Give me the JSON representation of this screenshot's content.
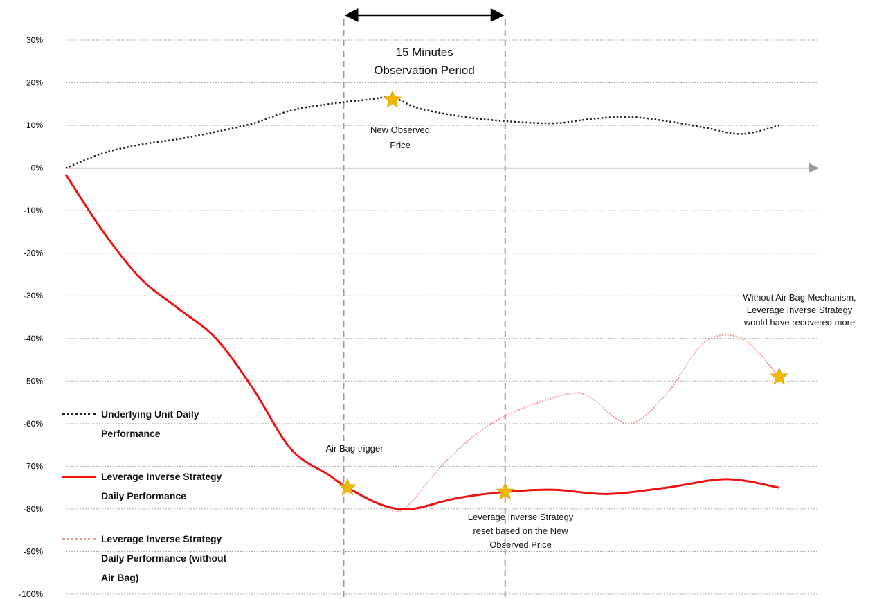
{
  "chart_data": {
    "type": "line",
    "yticks": [
      "30%",
      "20%",
      "10%",
      "0%",
      "-10%",
      "-20%",
      "-30%",
      "-40%",
      "-50%",
      "-60%",
      "-70%",
      "-80%",
      "-90%",
      "-100%"
    ],
    "ylim": [
      -100,
      30
    ],
    "xlim": [
      0,
      100
    ],
    "grid": true,
    "legend_position": "bottom-left",
    "observation_period": {
      "label_line1": "15 Minutes",
      "label_line2": "Observation Period",
      "x_start": 37,
      "x_end": 58.5
    },
    "series": [
      {
        "name": "Underlying Unit Daily Performance",
        "style": "dotted",
        "color": "#222222",
        "x": [
          0,
          5,
          10,
          15,
          20,
          25,
          30,
          35,
          40,
          43.5,
          47,
          53,
          58.5,
          65,
          70,
          75,
          80,
          85,
          90,
          95
        ],
        "y": [
          0,
          3.5,
          5.5,
          6.8,
          8.5,
          10.5,
          13.5,
          15,
          16,
          16.5,
          14,
          12,
          11,
          10.5,
          11.5,
          12,
          11,
          9.5,
          8,
          10
        ]
      },
      {
        "name": "Leverage Inverse Strategy Daily Performance",
        "style": "solid",
        "color": "#ee1111",
        "x": [
          0,
          5,
          10,
          15,
          20,
          25,
          30,
          35,
          37.5,
          42,
          46,
          52,
          58.5,
          65,
          72,
          80,
          88,
          95
        ],
        "y": [
          -1.5,
          -15,
          -26,
          -33,
          -40,
          -52,
          -66,
          -72,
          -75,
          -79,
          -80,
          -77.5,
          -76,
          -75.5,
          -76.5,
          -75,
          -73,
          -75
        ]
      },
      {
        "name": "Leverage Inverse Strategy Daily Performance (without Air Bag)",
        "style": "dotted",
        "color": "#f29a9a",
        "x": [
          37.5,
          42,
          45,
          50,
          55,
          60,
          67,
          70,
          75,
          80,
          85,
          90,
          95
        ],
        "y": [
          -75,
          -79,
          -80,
          -70,
          -62,
          -57,
          -53,
          -54,
          -60,
          -53,
          -41,
          -40,
          -49
        ]
      }
    ],
    "annotations": [
      {
        "id": "new-observed-price",
        "lines": [
          "New Observed",
          "Price"
        ],
        "x": 43.5,
        "y": 16
      },
      {
        "id": "air-bag-trigger",
        "lines": [
          "Air Bag trigger"
        ],
        "x": 37.5,
        "y": -75
      },
      {
        "id": "reset",
        "lines": [
          "Leverage Inverse Strategy",
          "reset based on the New",
          "Observed Price"
        ],
        "x": 58.5,
        "y": -76
      },
      {
        "id": "without-airbag",
        "lines": [
          "Without Air Bag Mechanism,",
          "Leverage Inverse Strategy",
          "would have recovered more"
        ],
        "x": 95,
        "y": -49
      }
    ],
    "star_color": "#f5b800"
  },
  "legend": [
    {
      "lines": [
        "Underlying Unit Daily",
        "Performance"
      ]
    },
    {
      "lines": [
        "Leverage Inverse Strategy",
        "Daily Performance"
      ]
    },
    {
      "lines": [
        "Leverage Inverse Strategy",
        "Daily Performance (without",
        "Air Bag)"
      ]
    }
  ]
}
